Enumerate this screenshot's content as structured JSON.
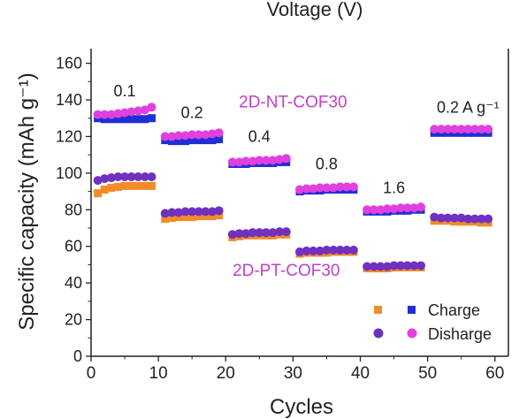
{
  "chart_data": {
    "type": "scatter",
    "top_cutoff_label": "Voltage (V)",
    "xlabel": "Cycles",
    "ylabel": "Specific capacity (mAh g⁻¹)",
    "xlim": [
      0,
      62
    ],
    "ylim": [
      0,
      168
    ],
    "xticks": [
      0,
      10,
      20,
      30,
      40,
      50,
      60
    ],
    "yticks": [
      0,
      20,
      40,
      60,
      80,
      100,
      120,
      140,
      160
    ],
    "legend": {
      "placement": "bottom-right",
      "charge_label": "Charge",
      "discharge_label": "Disharge"
    },
    "annotations": {
      "rate_labels": [
        {
          "text": "0.1",
          "x": 5,
          "y": 142
        },
        {
          "text": "0.2",
          "x": 15,
          "y": 130
        },
        {
          "text": "0.4",
          "x": 25,
          "y": 117
        },
        {
          "text": "0.8",
          "x": 35,
          "y": 102
        },
        {
          "text": "1.6",
          "x": 45,
          "y": 89
        },
        {
          "text": "0.2 A g⁻¹",
          "x": 56,
          "y": 133
        }
      ],
      "series_labels": [
        {
          "text": "2D-NT-COF30",
          "x": 30,
          "y": 136
        },
        {
          "text": "2D-PT-COF30",
          "x": 29,
          "y": 44
        }
      ]
    },
    "colors": {
      "nt_charge": "#1f2fd6",
      "nt_discharge": "#e040e0",
      "pt_charge": "#f28c28",
      "pt_discharge": "#7030c0"
    },
    "series": [
      {
        "group": "2D-NT-COF30",
        "kind": "charge",
        "x": [
          1,
          2,
          3,
          4,
          5,
          6,
          7,
          8,
          9,
          11,
          12,
          13,
          14,
          15,
          16,
          17,
          18,
          19,
          21,
          22,
          23,
          24,
          25,
          26,
          27,
          28,
          29,
          31,
          32,
          33,
          34,
          35,
          36,
          37,
          38,
          39,
          41,
          42,
          43,
          44,
          45,
          46,
          47,
          48,
          49,
          51,
          52,
          53,
          54,
          55,
          56,
          57,
          58,
          59
        ],
        "y": [
          130,
          129.5,
          129.5,
          129.5,
          129.5,
          129.5,
          129.5,
          129.5,
          130,
          118,
          117.5,
          117.5,
          117.5,
          118,
          118,
          118,
          118,
          118.5,
          105,
          105,
          105,
          105.5,
          105.5,
          105.5,
          105.5,
          106,
          106,
          90,
          90.5,
          90.5,
          90.5,
          91,
          91,
          91,
          91,
          91,
          79,
          79,
          79,
          79,
          79.5,
          79.5,
          79.5,
          80,
          80,
          122,
          122,
          122,
          122,
          122,
          122,
          122,
          122,
          122
        ]
      },
      {
        "group": "2D-NT-COF30",
        "kind": "discharge",
        "x": [
          1,
          2,
          3,
          4,
          5,
          6,
          7,
          8,
          9,
          11,
          12,
          13,
          14,
          15,
          16,
          17,
          18,
          19,
          21,
          22,
          23,
          24,
          25,
          26,
          27,
          28,
          29,
          31,
          32,
          33,
          34,
          35,
          36,
          37,
          38,
          39,
          41,
          42,
          43,
          44,
          45,
          46,
          47,
          48,
          49,
          51,
          52,
          53,
          54,
          55,
          56,
          57,
          58,
          59
        ],
        "y": [
          132,
          132,
          132,
          132.5,
          133,
          133.5,
          134,
          134.5,
          136,
          120,
          120,
          120.5,
          120.5,
          121,
          121,
          121,
          121.5,
          122,
          106,
          106,
          106.5,
          106.5,
          107,
          107,
          107,
          107.5,
          108,
          91,
          91.5,
          91.5,
          92,
          92,
          92,
          92.5,
          92.5,
          92.5,
          80,
          80,
          80,
          80.5,
          80.5,
          81,
          81,
          81,
          81.5,
          124,
          124,
          124,
          124,
          124,
          124,
          124,
          124,
          124
        ]
      },
      {
        "group": "2D-PT-COF30",
        "kind": "charge",
        "x": [
          1,
          2,
          3,
          4,
          5,
          6,
          7,
          8,
          9,
          11,
          12,
          13,
          14,
          15,
          16,
          17,
          18,
          19,
          21,
          22,
          23,
          24,
          25,
          26,
          27,
          28,
          29,
          31,
          32,
          33,
          34,
          35,
          36,
          37,
          38,
          39,
          41,
          42,
          43,
          44,
          45,
          46,
          47,
          48,
          49,
          51,
          52,
          53,
          54,
          55,
          56,
          57,
          58,
          59
        ],
        "y": [
          89,
          91,
          92,
          92.5,
          93,
          93,
          93,
          93,
          93,
          75,
          75.5,
          76,
          76,
          76,
          76.5,
          76.5,
          76.5,
          77,
          65,
          65.5,
          66,
          66,
          66,
          66,
          66,
          66.5,
          66.5,
          56,
          56.5,
          56.5,
          56.5,
          56.5,
          57,
          57,
          57,
          57,
          48,
          48,
          48,
          48,
          48.5,
          48.5,
          48.5,
          48.5,
          48.5,
          74,
          74,
          74,
          73.5,
          73.5,
          73.5,
          73.5,
          73,
          73
        ]
      },
      {
        "group": "2D-PT-COF30",
        "kind": "discharge",
        "x": [
          1,
          2,
          3,
          4,
          5,
          6,
          7,
          8,
          9,
          11,
          12,
          13,
          14,
          15,
          16,
          17,
          18,
          19,
          21,
          22,
          23,
          24,
          25,
          26,
          27,
          28,
          29,
          31,
          32,
          33,
          34,
          35,
          36,
          37,
          38,
          39,
          41,
          42,
          43,
          44,
          45,
          46,
          47,
          48,
          49,
          51,
          52,
          53,
          54,
          55,
          56,
          57,
          58,
          59
        ],
        "y": [
          96,
          97,
          97.5,
          98,
          98,
          98,
          98,
          98,
          98,
          78,
          78.5,
          78.5,
          79,
          79,
          79,
          79,
          79,
          79.5,
          66.5,
          67,
          67,
          67.5,
          67.5,
          67.5,
          67.5,
          68,
          68,
          57,
          57.5,
          57.5,
          57.5,
          58,
          58,
          58,
          58,
          58,
          49,
          49,
          49,
          49,
          49.5,
          49.5,
          49.5,
          49.5,
          49.5,
          76,
          75.5,
          75.5,
          75.5,
          75.5,
          75,
          75,
          75,
          75
        ]
      }
    ]
  }
}
